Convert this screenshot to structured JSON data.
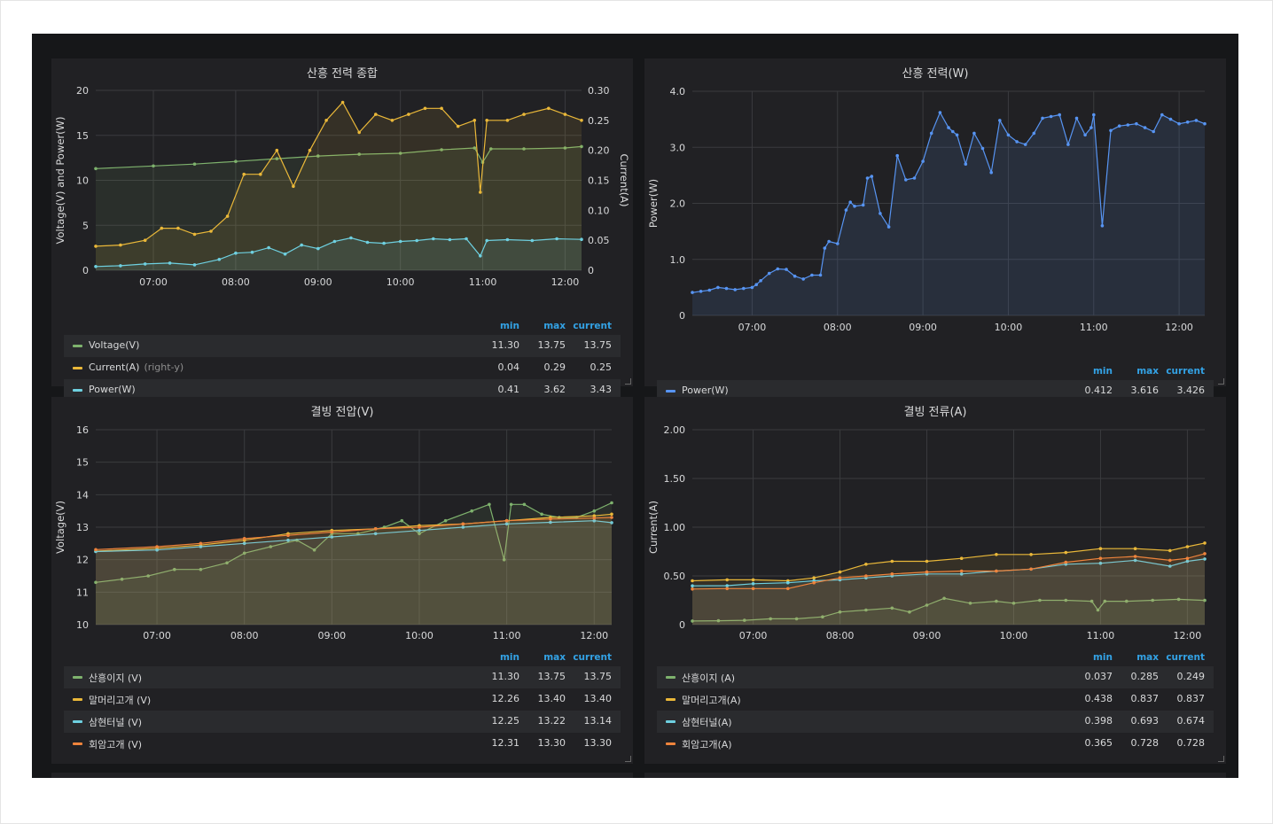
{
  "panels": [
    {
      "title": "산흥 전력 종합",
      "legend_headers": [
        "min",
        "max",
        "current"
      ],
      "legend": [
        {
          "name": "Voltage(V)",
          "note": "",
          "color": "#7eb26d",
          "min": "11.30",
          "max": "13.75",
          "current": "13.75"
        },
        {
          "name": "Current(A)",
          "note": "(right-y)",
          "color": "#eab839",
          "min": "0.04",
          "max": "0.29",
          "current": "0.25"
        },
        {
          "name": "Power(W)",
          "note": "",
          "color": "#6ed0e0",
          "min": "0.41",
          "max": "3.62",
          "current": "3.43"
        }
      ]
    },
    {
      "title": "산흥 전력(W)",
      "legend_headers": [
        "min",
        "max",
        "current"
      ],
      "legend": [
        {
          "name": "Power(W)",
          "note": "",
          "color": "#5794f2",
          "min": "0.412",
          "max": "3.616",
          "current": "3.426"
        }
      ]
    },
    {
      "title": "결빙 전압(V)",
      "legend_headers": [
        "min",
        "max",
        "current"
      ],
      "legend": [
        {
          "name": "산흥이지 (V)",
          "note": "",
          "color": "#7eb26d",
          "min": "11.30",
          "max": "13.75",
          "current": "13.75"
        },
        {
          "name": "말머리고개 (V)",
          "note": "",
          "color": "#eab839",
          "min": "12.26",
          "max": "13.40",
          "current": "13.40"
        },
        {
          "name": "삼현터널 (V)",
          "note": "",
          "color": "#6ed0e0",
          "min": "12.25",
          "max": "13.22",
          "current": "13.14"
        },
        {
          "name": "회암고개 (V)",
          "note": "",
          "color": "#ef843c",
          "min": "12.31",
          "max": "13.30",
          "current": "13.30"
        }
      ]
    },
    {
      "title": "결빙 전류(A)",
      "legend_headers": [
        "min",
        "max",
        "current"
      ],
      "legend": [
        {
          "name": "산흥이지 (A)",
          "note": "",
          "color": "#7eb26d",
          "min": "0.037",
          "max": "0.285",
          "current": "0.249"
        },
        {
          "name": "말머리고개(A)",
          "note": "",
          "color": "#eab839",
          "min": "0.438",
          "max": "0.837",
          "current": "0.837"
        },
        {
          "name": "삼현터널(A)",
          "note": "",
          "color": "#6ed0e0",
          "min": "0.398",
          "max": "0.693",
          "current": "0.674"
        },
        {
          "name": "회암고개(A)",
          "note": "",
          "color": "#ef843c",
          "min": "0.365",
          "max": "0.728",
          "current": "0.728"
        }
      ]
    }
  ],
  "chart_data": [
    {
      "type": "line",
      "title": "산흥 전력 종합",
      "ylabel": "Voltage(V) and Power(W)",
      "y2label": "Current(A)",
      "x_ticks": [
        "07:00",
        "08:00",
        "09:00",
        "10:00",
        "11:00",
        "12:00"
      ],
      "y_ticks": [
        "0",
        "5",
        "10",
        "15",
        "20"
      ],
      "y2_ticks": [
        "0",
        "0.05",
        "0.10",
        "0.15",
        "0.20",
        "0.25",
        "0.30"
      ],
      "x_range_hours": [
        6.3,
        12.2
      ],
      "ylim": [
        0,
        20
      ],
      "y2lim": [
        0,
        0.3
      ],
      "grid": true,
      "series": [
        {
          "name": "Voltage(V)",
          "axis": "left",
          "color": "#7eb26d",
          "x": [
            6.3,
            7.0,
            7.5,
            8.0,
            8.5,
            9.0,
            9.5,
            10.0,
            10.5,
            10.9,
            11.0,
            11.1,
            11.5,
            12.0,
            12.2
          ],
          "y": [
            11.3,
            11.6,
            11.8,
            12.1,
            12.4,
            12.7,
            12.9,
            13.0,
            13.4,
            13.6,
            12.0,
            13.5,
            13.5,
            13.6,
            13.75
          ]
        },
        {
          "name": "Current(A)",
          "axis": "right",
          "color": "#eab839",
          "x": [
            6.3,
            6.6,
            6.9,
            7.1,
            7.3,
            7.5,
            7.7,
            7.9,
            8.1,
            8.3,
            8.5,
            8.7,
            8.9,
            9.1,
            9.3,
            9.5,
            9.7,
            9.9,
            10.1,
            10.3,
            10.5,
            10.7,
            10.9,
            10.97,
            11.05,
            11.3,
            11.5,
            11.8,
            12.0,
            12.2
          ],
          "y": [
            0.04,
            0.042,
            0.05,
            0.07,
            0.07,
            0.06,
            0.065,
            0.09,
            0.16,
            0.16,
            0.2,
            0.14,
            0.2,
            0.25,
            0.28,
            0.23,
            0.26,
            0.25,
            0.26,
            0.27,
            0.27,
            0.24,
            0.25,
            0.13,
            0.25,
            0.25,
            0.26,
            0.27,
            0.26,
            0.25
          ]
        },
        {
          "name": "Power(W)",
          "axis": "left",
          "color": "#6ed0e0",
          "x": [
            6.3,
            6.6,
            6.9,
            7.2,
            7.5,
            7.8,
            8.0,
            8.2,
            8.4,
            8.6,
            8.8,
            9.0,
            9.2,
            9.4,
            9.6,
            9.8,
            10.0,
            10.2,
            10.4,
            10.6,
            10.8,
            10.97,
            11.05,
            11.3,
            11.6,
            11.9,
            12.2
          ],
          "y": [
            0.41,
            0.5,
            0.7,
            0.8,
            0.6,
            1.2,
            1.9,
            2.0,
            2.5,
            1.8,
            2.8,
            2.4,
            3.2,
            3.6,
            3.1,
            3.0,
            3.2,
            3.3,
            3.5,
            3.4,
            3.5,
            1.6,
            3.3,
            3.4,
            3.3,
            3.5,
            3.43
          ]
        }
      ]
    },
    {
      "type": "area",
      "title": "산흥 전력(W)",
      "ylabel": "Power(W)",
      "x_ticks": [
        "07:00",
        "08:00",
        "09:00",
        "10:00",
        "11:00",
        "12:00"
      ],
      "y_ticks": [
        "0",
        "1.0",
        "2.0",
        "3.0",
        "4.0"
      ],
      "x_range_hours": [
        6.3,
        12.3
      ],
      "ylim": [
        0,
        4.0
      ],
      "grid": true,
      "series": [
        {
          "name": "Power(W)",
          "color": "#5794f2",
          "x": [
            6.3,
            6.4,
            6.5,
            6.6,
            6.7,
            6.8,
            6.9,
            7.0,
            7.05,
            7.1,
            7.2,
            7.3,
            7.4,
            7.5,
            7.6,
            7.7,
            7.8,
            7.85,
            7.9,
            8.0,
            8.1,
            8.15,
            8.2,
            8.3,
            8.35,
            8.4,
            8.5,
            8.6,
            8.7,
            8.8,
            8.9,
            9.0,
            9.1,
            9.2,
            9.3,
            9.35,
            9.4,
            9.5,
            9.6,
            9.7,
            9.8,
            9.9,
            10.0,
            10.1,
            10.2,
            10.3,
            10.4,
            10.5,
            10.6,
            10.7,
            10.8,
            10.9,
            10.97,
            11.0,
            11.1,
            11.2,
            11.3,
            11.4,
            11.5,
            11.6,
            11.7,
            11.8,
            11.9,
            12.0,
            12.1,
            12.2,
            12.3
          ],
          "y": [
            0.41,
            0.43,
            0.45,
            0.5,
            0.48,
            0.46,
            0.48,
            0.5,
            0.55,
            0.62,
            0.75,
            0.83,
            0.82,
            0.7,
            0.65,
            0.72,
            0.72,
            1.2,
            1.32,
            1.28,
            1.88,
            2.02,
            1.95,
            1.97,
            2.45,
            2.48,
            1.82,
            1.58,
            2.85,
            2.42,
            2.45,
            2.75,
            3.25,
            3.62,
            3.35,
            3.28,
            3.22,
            2.7,
            3.25,
            2.98,
            2.55,
            3.48,
            3.22,
            3.1,
            3.05,
            3.25,
            3.52,
            3.55,
            3.58,
            3.05,
            3.52,
            3.22,
            3.35,
            3.58,
            1.6,
            3.3,
            3.38,
            3.4,
            3.42,
            3.35,
            3.28,
            3.58,
            3.5,
            3.42,
            3.45,
            3.48,
            3.42
          ]
        }
      ]
    },
    {
      "type": "area",
      "title": "결빙 전압(V)",
      "ylabel": "Voltage(V)",
      "x_ticks": [
        "07:00",
        "08:00",
        "09:00",
        "10:00",
        "11:00",
        "12:00"
      ],
      "y_ticks": [
        "10",
        "11",
        "12",
        "13",
        "14",
        "15",
        "16"
      ],
      "x_range_hours": [
        6.3,
        12.2
      ],
      "ylim": [
        10,
        16
      ],
      "grid": true,
      "series": [
        {
          "name": "산흥이지 (V)",
          "color": "#7eb26d",
          "x": [
            6.3,
            6.6,
            6.9,
            7.2,
            7.5,
            7.8,
            8.0,
            8.3,
            8.6,
            8.8,
            9.0,
            9.3,
            9.6,
            9.8,
            10.0,
            10.3,
            10.6,
            10.8,
            10.97,
            11.05,
            11.2,
            11.4,
            11.6,
            11.8,
            12.0,
            12.2
          ],
          "y": [
            11.3,
            11.4,
            11.5,
            11.7,
            11.7,
            11.9,
            12.2,
            12.4,
            12.6,
            12.3,
            12.8,
            12.8,
            13.0,
            13.2,
            12.8,
            13.2,
            13.5,
            13.7,
            12.0,
            13.7,
            13.7,
            13.4,
            13.3,
            13.3,
            13.5,
            13.75
          ]
        },
        {
          "name": "말머리고개 (V)",
          "color": "#eab839",
          "x": [
            6.3,
            7.0,
            7.5,
            8.0,
            8.5,
            9.0,
            9.5,
            10.0,
            10.5,
            11.0,
            11.5,
            12.0,
            12.2
          ],
          "y": [
            12.26,
            12.35,
            12.45,
            12.6,
            12.8,
            12.9,
            12.95,
            13.05,
            13.1,
            13.2,
            13.3,
            13.35,
            13.4
          ]
        },
        {
          "name": "삼현터널 (V)",
          "color": "#6ed0e0",
          "x": [
            6.3,
            7.0,
            7.5,
            8.0,
            8.5,
            9.0,
            9.5,
            10.0,
            10.5,
            11.0,
            11.5,
            12.0,
            12.2
          ],
          "y": [
            12.25,
            12.3,
            12.4,
            12.5,
            12.6,
            12.7,
            12.8,
            12.9,
            13.0,
            13.1,
            13.15,
            13.2,
            13.14
          ]
        },
        {
          "name": "회암고개 (V)",
          "color": "#ef843c",
          "x": [
            6.3,
            7.0,
            7.5,
            8.0,
            8.5,
            9.0,
            9.5,
            10.0,
            10.5,
            11.0,
            11.5,
            12.0,
            12.2
          ],
          "y": [
            12.31,
            12.4,
            12.5,
            12.65,
            12.75,
            12.85,
            12.95,
            13.0,
            13.1,
            13.2,
            13.25,
            13.28,
            13.3
          ]
        }
      ]
    },
    {
      "type": "area",
      "title": "결빙 전류(A)",
      "ylabel": "Current(A)",
      "x_ticks": [
        "07:00",
        "08:00",
        "09:00",
        "10:00",
        "11:00",
        "12:00"
      ],
      "y_ticks": [
        "0",
        "0.50",
        "1.00",
        "1.50",
        "2.00"
      ],
      "x_range_hours": [
        6.3,
        12.2
      ],
      "ylim": [
        0,
        2.0
      ],
      "grid": true,
      "series": [
        {
          "name": "산흥이지 (A)",
          "color": "#7eb26d",
          "x": [
            6.3,
            6.6,
            6.9,
            7.2,
            7.5,
            7.8,
            8.0,
            8.3,
            8.6,
            8.8,
            9.0,
            9.2,
            9.5,
            9.8,
            10.0,
            10.3,
            10.6,
            10.9,
            10.97,
            11.05,
            11.3,
            11.6,
            11.9,
            12.2
          ],
          "y": [
            0.037,
            0.04,
            0.045,
            0.06,
            0.06,
            0.08,
            0.13,
            0.15,
            0.17,
            0.13,
            0.2,
            0.27,
            0.22,
            0.24,
            0.22,
            0.25,
            0.25,
            0.24,
            0.15,
            0.24,
            0.24,
            0.25,
            0.26,
            0.249
          ]
        },
        {
          "name": "말머리고개(A)",
          "color": "#eab839",
          "x": [
            6.3,
            6.7,
            7.0,
            7.4,
            7.7,
            8.0,
            8.3,
            8.6,
            9.0,
            9.4,
            9.8,
            10.2,
            10.6,
            11.0,
            11.4,
            11.8,
            12.0,
            12.2
          ],
          "y": [
            0.45,
            0.46,
            0.46,
            0.45,
            0.48,
            0.54,
            0.62,
            0.65,
            0.65,
            0.68,
            0.72,
            0.72,
            0.74,
            0.78,
            0.78,
            0.76,
            0.8,
            0.837
          ]
        },
        {
          "name": "삼현터널(A)",
          "color": "#6ed0e0",
          "x": [
            6.3,
            6.7,
            7.0,
            7.4,
            7.7,
            8.0,
            8.3,
            8.6,
            9.0,
            9.4,
            9.8,
            10.2,
            10.6,
            11.0,
            11.4,
            11.8,
            12.0,
            12.2
          ],
          "y": [
            0.398,
            0.4,
            0.42,
            0.43,
            0.45,
            0.46,
            0.48,
            0.5,
            0.52,
            0.52,
            0.55,
            0.57,
            0.62,
            0.63,
            0.66,
            0.6,
            0.65,
            0.674
          ]
        },
        {
          "name": "회암고개(A)",
          "color": "#ef843c",
          "x": [
            6.3,
            6.7,
            7.0,
            7.4,
            7.7,
            8.0,
            8.3,
            8.6,
            9.0,
            9.4,
            9.8,
            10.2,
            10.6,
            11.0,
            11.4,
            11.8,
            12.0,
            12.2
          ],
          "y": [
            0.365,
            0.37,
            0.37,
            0.37,
            0.43,
            0.48,
            0.5,
            0.52,
            0.54,
            0.55,
            0.55,
            0.57,
            0.64,
            0.68,
            0.7,
            0.66,
            0.68,
            0.728
          ]
        }
      ]
    }
  ]
}
